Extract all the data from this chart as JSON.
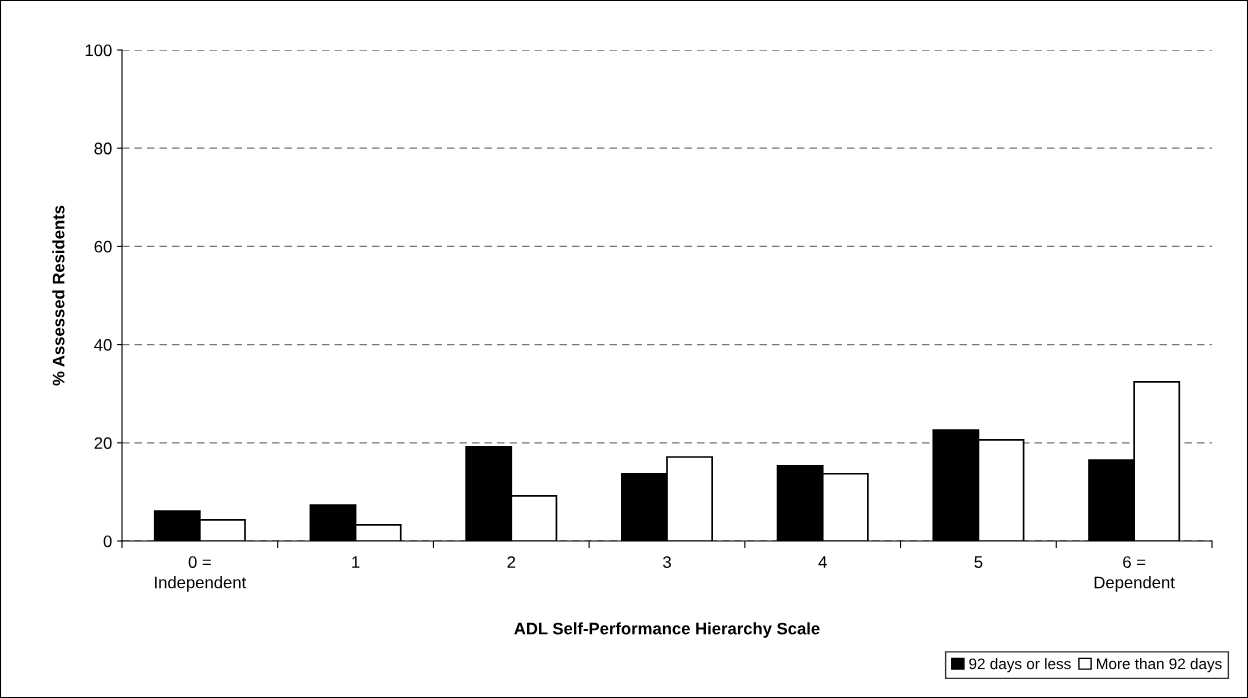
{
  "chart_data": {
    "type": "bar",
    "xlabel": "ADL Self-Performance Hierarchy Scale",
    "ylabel": "% Assessed Residents",
    "categories": [
      "0 =\nIndependent",
      "1",
      "2",
      "3",
      "4",
      "5",
      "6 =\nDependent"
    ],
    "series": [
      {
        "name": "92 days or less",
        "color": "#000000",
        "values": [
          6.1,
          7.3,
          19.2,
          13.7,
          15.3,
          22.6,
          16.5
        ]
      },
      {
        "name": "More than 92 days",
        "color": "#ffffff",
        "values": [
          4.3,
          3.3,
          9.2,
          17.1,
          13.7,
          20.6,
          32.4
        ]
      }
    ],
    "ylim": [
      0,
      100
    ],
    "yticks": [
      0,
      20,
      40,
      60,
      80,
      100
    ],
    "grid": "y",
    "legend": "bottom right"
  }
}
